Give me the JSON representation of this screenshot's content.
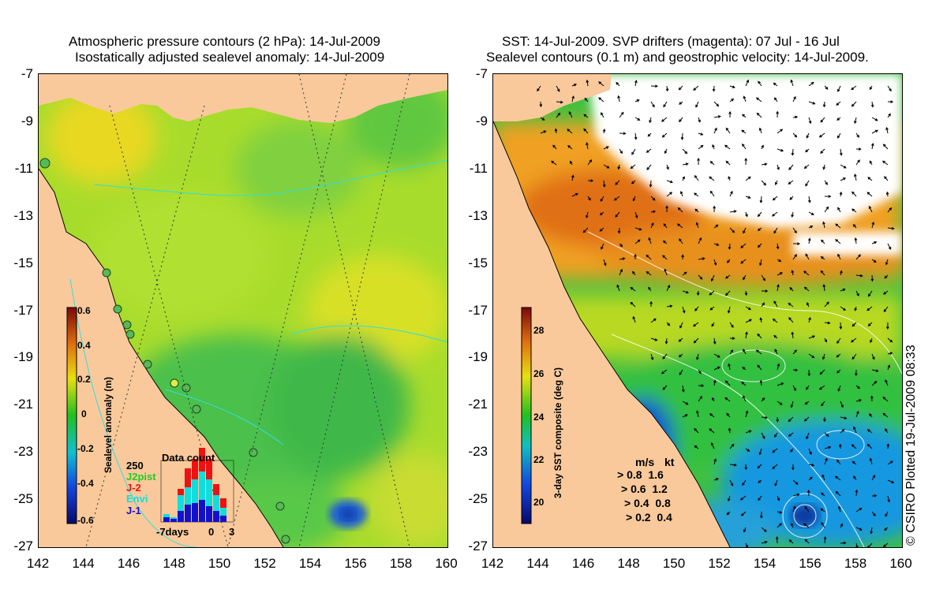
{
  "left_panel": {
    "title_line1": "Atmospheric pressure contours (2 hPa): 14-Jul-2009",
    "title_line2": "Isostatically adjusted sealevel anomaly: 14-Jul-2009",
    "colorbar": {
      "label": "Sealevel anomaly (m)",
      "ticks": [
        "0.6",
        "0.4",
        "0.2",
        "0",
        "-0.2",
        "-0.4",
        "-0.6"
      ]
    },
    "data_count": {
      "title": "Data count",
      "max_label": "250",
      "x_labels": [
        "-7days",
        "0",
        "3"
      ],
      "legend": [
        {
          "name": "J2pist",
          "color": "#22cc22"
        },
        {
          "name": "J-2",
          "color": "#ee1111"
        },
        {
          "name": "Envi",
          "color": "#11dddd"
        },
        {
          "name": "J-1",
          "color": "#1111cc"
        }
      ]
    }
  },
  "right_panel": {
    "title_line1": "SST: 14-Jul-2009. SVP drifters (magenta): 07 Jul - 16 Jul",
    "title_line2": "Sealevel contours (0.1 m) and geostrophic velocity: 14-Jul-2009.",
    "colorbar": {
      "label": "3-day SST composite (deg C)",
      "ticks": [
        "28",
        "26",
        "24",
        "22",
        "20"
      ]
    },
    "velocity_legend": {
      "header_ms": "m/s",
      "header_kt": "kt",
      "rows": [
        {
          "ms": "0.8",
          "kt": "1.6"
        },
        {
          "ms": "0.6",
          "kt": "1.2"
        },
        {
          "ms": "0.4",
          "kt": "0.8"
        },
        {
          "ms": "0.2",
          "kt": "0.4"
        }
      ]
    }
  },
  "axes": {
    "y_ticks": [
      "-7",
      "-9",
      "-11",
      "-13",
      "-15",
      "-17",
      "-19",
      "-21",
      "-23",
      "-25",
      "-27"
    ],
    "x_ticks": [
      "142",
      "144",
      "146",
      "148",
      "150",
      "152",
      "154",
      "156",
      "158",
      "160"
    ]
  },
  "copyright": "© CSIRO Plotted 19-Jul-2009 08:33",
  "colors": {
    "land": "#f9c99b",
    "cloud": "#ffffff"
  }
}
